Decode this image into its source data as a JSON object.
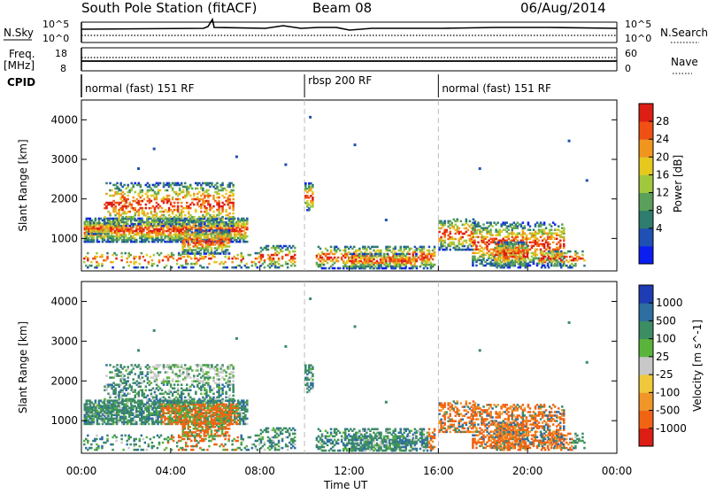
{
  "header": {
    "station": "South Pole Station (fitACF)",
    "beam": "Beam 08",
    "date": "06/Aug/2014"
  },
  "top_panels": {
    "nsky_label": "N.Sky",
    "nsearch_label": "N.Search",
    "nsky_tick_hi": "10^5",
    "nsky_tick_lo": "10^0",
    "nsky_right_hi": "10^5",
    "nsky_right_lo": "10^0",
    "freq_label_1": "Freq.",
    "freq_label_2": "[MHz]",
    "freq_tick_hi": "18",
    "freq_tick_lo": "8",
    "nave_label": "Nave",
    "nave_tick_hi": "60",
    "nave_tick_lo": "0",
    "cpid_label": "CPID",
    "cpid_segments": [
      {
        "label": "normal (fast) 151 RF",
        "start_h": 0,
        "end_h": 10
      },
      {
        "label": "rbsp 200 RF",
        "start_h": 10,
        "end_h": 16
      },
      {
        "label": "normal (fast) 151 RF",
        "start_h": 16,
        "end_h": 24
      }
    ]
  },
  "chart_data": [
    {
      "type": "heatmap",
      "quantity": "power",
      "ylabel": "Slant Range [km]",
      "xlabel": "",
      "ylim": [
        180,
        4500
      ],
      "xlim_hours": [
        0,
        24
      ],
      "yticks": [
        1000,
        2000,
        3000,
        4000
      ],
      "colorbar_label": "Power [dB]",
      "colorbar_ticks": [
        "28",
        "24",
        "20",
        "16",
        "12",
        "8",
        "4"
      ],
      "colorbar_colors": [
        "#0a1ef0",
        "#2050b4",
        "#2e7d6e",
        "#5aa05a",
        "#a0c83c",
        "#e6c81e",
        "#f0961e",
        "#f05014",
        "#dc1e14"
      ],
      "colorbar_range": [
        0,
        30
      ]
    },
    {
      "type": "heatmap",
      "quantity": "velocity",
      "ylabel": "Slant Range [km]",
      "xlabel": "Time UT",
      "ylim": [
        180,
        4500
      ],
      "xlim_hours": [
        0,
        24
      ],
      "yticks": [
        1000,
        2000,
        3000,
        4000
      ],
      "colorbar_label": "Velocity [m s^-1]",
      "colorbar_ticks": [
        "1000",
        "500",
        "100",
        "25",
        "-25",
        "-100",
        "-500",
        "-1000"
      ],
      "colorbar_colors": [
        "#1e3cb4",
        "#2e6ea0",
        "#3c8c64",
        "#5ab43c",
        "#c8c8c8",
        "#f0c83c",
        "#f09628",
        "#f06414",
        "#dc1e14"
      ]
    }
  ],
  "xaxis": {
    "ticks": [
      "00:00",
      "04:00",
      "08:00",
      "12:00",
      "16:00",
      "20:00",
      "00:00"
    ],
    "tick_hours": [
      0,
      4,
      8,
      12,
      16,
      20,
      24
    ],
    "label": "Time UT"
  },
  "colors": {
    "power": [
      "#0a1ef0",
      "#2050b4",
      "#2e7d6e",
      "#5aa05a",
      "#a0c83c",
      "#e6c81e",
      "#f0961e",
      "#f05014",
      "#dc1e14"
    ],
    "velocity": [
      "#1e3cb4",
      "#2e6ea0",
      "#3c8c64",
      "#5ab43c",
      "#c8c8c8",
      "#f0c83c",
      "#f09628",
      "#f06414",
      "#dc1e14"
    ]
  }
}
